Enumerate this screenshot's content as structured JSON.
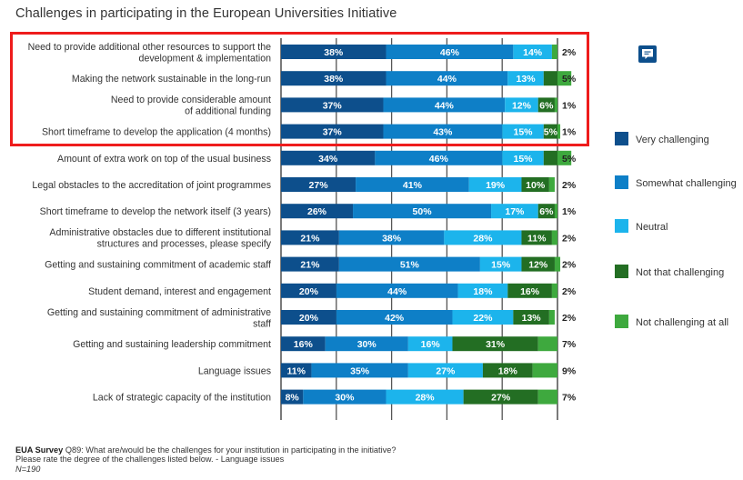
{
  "title": "Challenges in participating in the European Universities Initiative",
  "comment_button": {
    "icon": "comment-icon",
    "color": "#0d4f8c"
  },
  "highlight": {
    "color": "#ee1c1c",
    "rows_highlighted": 4
  },
  "footnote": {
    "source_bold": "EUA Survey",
    "question": " Q89: What are/would be the challenges for your institution in participating in the initiative? Please rate the degree of the challenges listed below. - Language issues",
    "n": "N=190"
  },
  "chart_data": {
    "type": "bar",
    "orientation": "horizontal",
    "stacked": true,
    "title": "Challenges in participating in the European Universities Initiative",
    "xlabel": "",
    "ylabel": "",
    "xlim": [
      0,
      100
    ],
    "grid": true,
    "legend_position": "right",
    "categories": [
      "Need to provide additional other resources to support the\ndevelopment & implementation",
      "Making the network sustainable in the long-run",
      "Need to provide considerable amount\nof additional funding",
      "Short timeframe to develop the application (4 months)",
      "Amount of extra work on top of the usual business",
      "Legal obstacles to the accreditation of joint programmes",
      "Short timeframe to develop the network itself (3 years)",
      "Administrative obstacles due to different institutional\nstructures and processes, please specify",
      "Getting and sustaining commitment of academic staff",
      "Student demand, interest and engagement",
      "Getting and sustaining commitment of administrative\nstaff",
      "Getting and sustaining leadership commitment",
      "Language issues",
      "Lack of strategic capacity of the institution"
    ],
    "series": [
      {
        "name": "Very challenging",
        "color": "#0d4f8c",
        "values": [
          38,
          38,
          37,
          37,
          34,
          27,
          26,
          21,
          21,
          20,
          20,
          16,
          11,
          8
        ],
        "labels": [
          "38%",
          "38%",
          "37%",
          "37%",
          "34%",
          "27%",
          "26%",
          "21%",
          "21%",
          "20%",
          "20%",
          "16%",
          "11%",
          "8%"
        ]
      },
      {
        "name": "Somewhat challenging",
        "color": "#0e7fc7",
        "values": [
          46,
          44,
          44,
          43,
          46,
          41,
          50,
          38,
          51,
          44,
          42,
          30,
          35,
          30
        ],
        "labels": [
          "46%",
          "44%",
          "44%",
          "43%",
          "46%",
          "41%",
          "50%",
          "38%",
          "51%",
          "44%",
          "42%",
          "30%",
          "35%",
          "30%"
        ]
      },
      {
        "name": "Neutral",
        "color": "#1cb4ec",
        "values": [
          14,
          13,
          12,
          15,
          15,
          19,
          17,
          28,
          15,
          18,
          22,
          16,
          27,
          28
        ],
        "labels": [
          "14%",
          "13%",
          "12%",
          "15%",
          "15%",
          "19%",
          "17%",
          "28%",
          "15%",
          "18%",
          "22%",
          "16%",
          "27%",
          "28%"
        ]
      },
      {
        "name": "Not that challenging",
        "color": "#236e23",
        "values": [
          0,
          5,
          6,
          5,
          5,
          10,
          6,
          11,
          12,
          16,
          13,
          31,
          18,
          27
        ],
        "labels": [
          "",
          "",
          "6%",
          "5%",
          "",
          "10%",
          "6%",
          "11%",
          "12%",
          "16%",
          "13%",
          "31%",
          "18%",
          "27%"
        ]
      },
      {
        "name": "Not challenging at all",
        "color": "#3ea93e",
        "values": [
          2,
          5,
          1,
          1,
          5,
          2,
          1,
          2,
          2,
          2,
          2,
          7,
          9,
          7
        ],
        "labels": [
          "2%",
          "5%",
          "1%",
          "1%",
          "5%",
          "2%",
          "1%",
          "2%",
          "2%",
          "2%",
          "2%",
          "7%",
          "9%",
          "7%"
        ]
      }
    ]
  }
}
